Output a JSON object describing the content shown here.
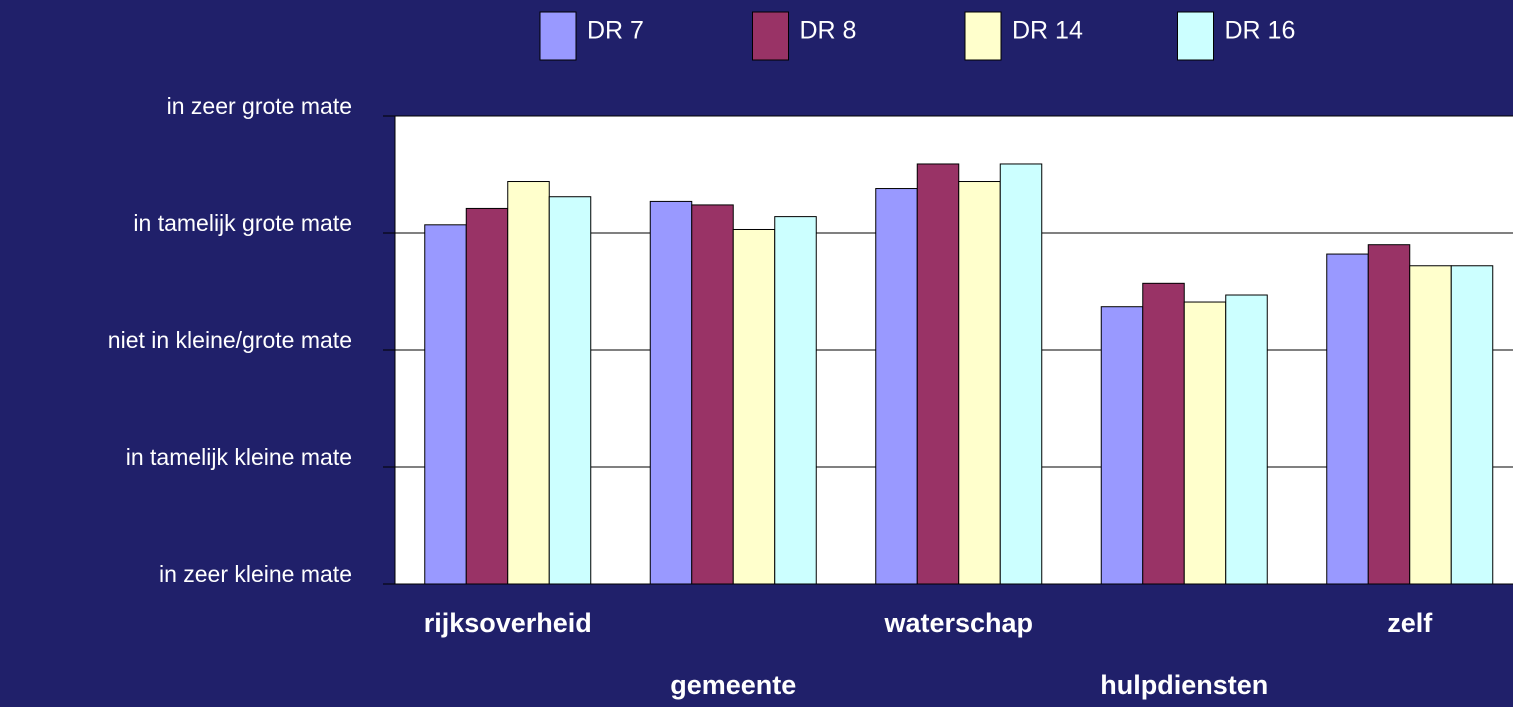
{
  "chart_data": {
    "type": "bar",
    "categories": [
      "rijksoverheid",
      "gemeente",
      "waterschap",
      "hulpdiensten",
      "zelf"
    ],
    "series": [
      {
        "name": "DR 7",
        "color": "#9999ff",
        "values": [
          4.07,
          4.27,
          4.38,
          3.37,
          3.82
        ]
      },
      {
        "name": "DR 8",
        "color": "#993366",
        "values": [
          4.21,
          4.24,
          4.59,
          3.57,
          3.9
        ]
      },
      {
        "name": "DR 14",
        "color": "#ffffcc",
        "values": [
          4.44,
          4.03,
          4.44,
          3.41,
          3.72
        ]
      },
      {
        "name": "DR 16",
        "color": "#ccffff",
        "values": [
          4.31,
          4.14,
          4.59,
          3.47,
          3.72
        ]
      }
    ],
    "ylim": [
      1,
      5
    ],
    "yticks": [
      {
        "value": 1,
        "label": "in zeer kleine mate"
      },
      {
        "value": 2,
        "label": "in tamelijk kleine mate"
      },
      {
        "value": 3,
        "label": "niet in kleine/grote mate"
      },
      {
        "value": 4,
        "label": "in tamelijk grote mate"
      },
      {
        "value": 5,
        "label": "in zeer grote mate"
      }
    ],
    "grid": true,
    "legend": "top"
  }
}
